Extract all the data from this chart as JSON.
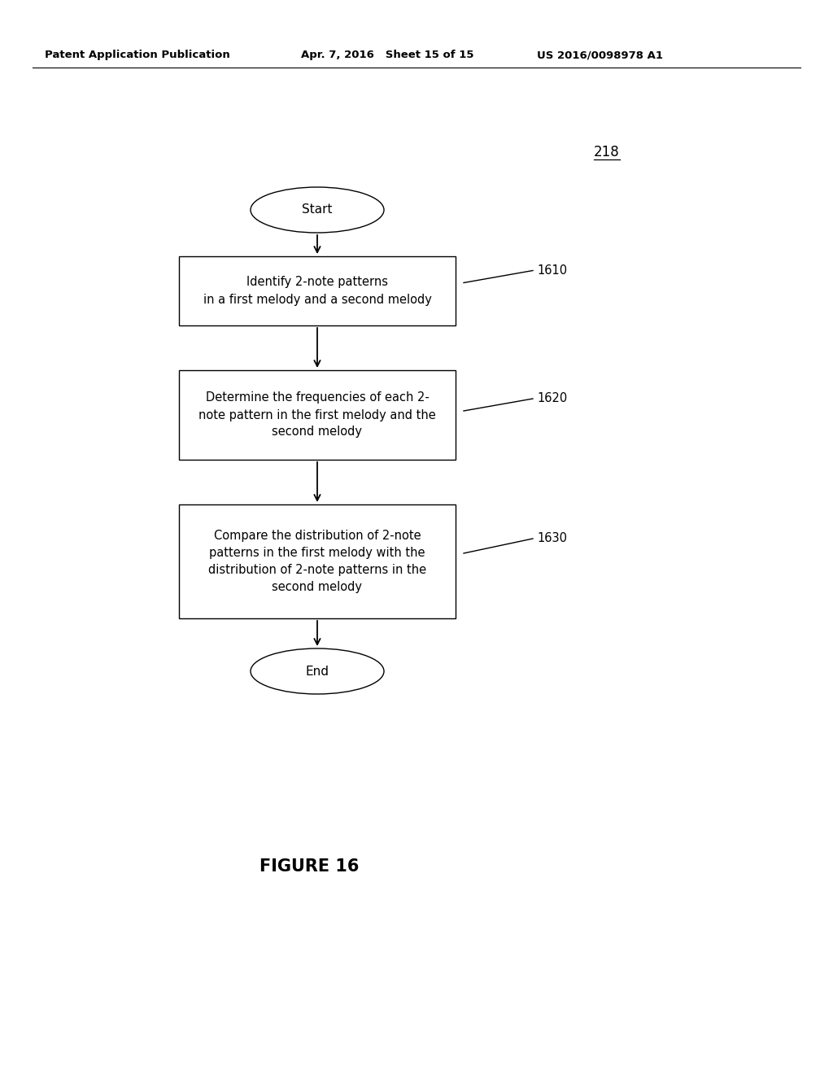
{
  "background_color": "#ffffff",
  "header_left": "Patent Application Publication",
  "header_mid": "Apr. 7, 2016   Sheet 15 of 15",
  "header_right": "US 2016/0098978 A1",
  "header_fontsize": 9.5,
  "diagram_label": "218",
  "figure_label": "FIGURE 16",
  "start_text": "Start",
  "end_text": "End",
  "box1_text": "Identify 2-note patterns\nin a first melody and a second melody",
  "box2_text": "Determine the frequencies of each 2-\nnote pattern in the first melody and the\nsecond melody",
  "box3_text": "Compare the distribution of 2-note\npatterns in the first melody with the\ndistribution of 2-note patterns in the\nsecond melody",
  "label1": "1610",
  "label2": "1620",
  "label3": "1630",
  "text_color": "#000000",
  "box_edge_color": "#000000",
  "box_face_color": "#ffffff",
  "arrow_color": "#000000",
  "font_family": "DejaVu Sans"
}
